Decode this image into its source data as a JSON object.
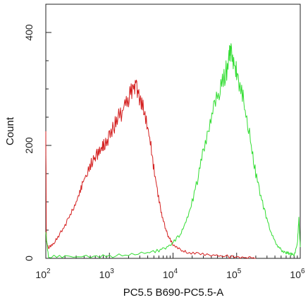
{
  "chart_data": {
    "type": "line",
    "title": "",
    "xlabel": "PC5.5 B690-PC5.5-A",
    "ylabel": "Count",
    "x_scale": "log",
    "xlim": [
      100,
      1000000
    ],
    "ylim": [
      0,
      450
    ],
    "x_ticks": [
      {
        "value": 100,
        "base": "10",
        "exp": "2"
      },
      {
        "value": 1000,
        "base": "10",
        "exp": "3"
      },
      {
        "value": 10000,
        "base": "10",
        "exp": "4"
      },
      {
        "value": 100000,
        "base": "10",
        "exp": "5"
      },
      {
        "value": 1000000,
        "base": "10",
        "exp": "6"
      }
    ],
    "y_ticks": [
      {
        "value": 0,
        "label": "0"
      },
      {
        "value": 200,
        "label": "200"
      },
      {
        "value": 400,
        "label": "400"
      }
    ],
    "grid": false,
    "series": [
      {
        "color": "#d42020",
        "points": [
          [
            100,
            225
          ],
          [
            102,
            30
          ],
          [
            110,
            18
          ],
          [
            130,
            25
          ],
          [
            160,
            40
          ],
          [
            200,
            58
          ],
          [
            250,
            80
          ],
          [
            300,
            100
          ],
          [
            350,
            120
          ],
          [
            400,
            140
          ],
          [
            480,
            160
          ],
          [
            560,
            175
          ],
          [
            650,
            185
          ],
          [
            750,
            195
          ],
          [
            850,
            205
          ],
          [
            1000,
            215
          ],
          [
            1200,
            235
          ],
          [
            1400,
            250
          ],
          [
            1700,
            265
          ],
          [
            2000,
            285
          ],
          [
            2300,
            300
          ],
          [
            2600,
            312
          ],
          [
            2900,
            290
          ],
          [
            3300,
            270
          ],
          [
            3800,
            245
          ],
          [
            4400,
            205
          ],
          [
            5000,
            160
          ],
          [
            5800,
            115
          ],
          [
            6600,
            80
          ],
          [
            7500,
            55
          ],
          [
            8500,
            38
          ],
          [
            10000,
            25
          ],
          [
            13000,
            15
          ],
          [
            17000,
            10
          ],
          [
            25000,
            8
          ],
          [
            40000,
            6
          ],
          [
            60000,
            4
          ],
          [
            100000,
            2
          ],
          [
            150000,
            1
          ],
          [
            200000,
            0
          ]
        ]
      },
      {
        "color": "#33dd33",
        "points": [
          [
            100,
            45
          ],
          [
            110,
            3
          ],
          [
            200,
            2
          ],
          [
            500,
            3
          ],
          [
            1000,
            4
          ],
          [
            2000,
            6
          ],
          [
            4000,
            10
          ],
          [
            6000,
            14
          ],
          [
            8000,
            20
          ],
          [
            10000,
            28
          ],
          [
            13000,
            42
          ],
          [
            16000,
            65
          ],
          [
            20000,
            100
          ],
          [
            25000,
            145
          ],
          [
            30000,
            190
          ],
          [
            37000,
            235
          ],
          [
            45000,
            270
          ],
          [
            55000,
            300
          ],
          [
            65000,
            325
          ],
          [
            75000,
            345
          ],
          [
            80000,
            370
          ],
          [
            90000,
            350
          ],
          [
            100000,
            325
          ],
          [
            120000,
            295
          ],
          [
            140000,
            255
          ],
          [
            170000,
            200
          ],
          [
            200000,
            150
          ],
          [
            240000,
            110
          ],
          [
            290000,
            75
          ],
          [
            350000,
            45
          ],
          [
            420000,
            25
          ],
          [
            500000,
            15
          ],
          [
            600000,
            10
          ],
          [
            700000,
            8
          ],
          [
            800000,
            6
          ],
          [
            900000,
            25
          ],
          [
            950000,
            70
          ],
          [
            1000000,
            20
          ]
        ]
      }
    ]
  }
}
